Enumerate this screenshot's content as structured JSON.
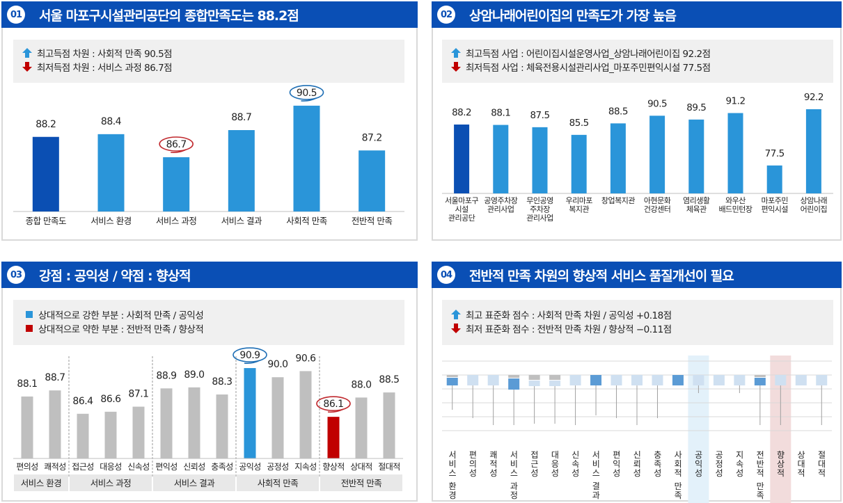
{
  "colors": {
    "header": "#0a4fb5",
    "bar_primary": "#0b4fb3",
    "bar_light": "#2a95d9",
    "bar_gray": "#bfbfbf",
    "bar_red": "#c00000",
    "up_arrow": "#2a95d9",
    "down_arrow": "#c00000",
    "circle_blue": "#1f6fb5",
    "circle_red": "#c0282d",
    "box_dark": "#5b9bd5",
    "box_light": "#cfe0f1",
    "box_gray": "#bfbfbf",
    "highlight_blue": "#e3f1fa",
    "highlight_red": "#f2dcdc"
  },
  "panels": [
    {
      "badge": "01",
      "title": "서울 마포구시설관리공단의 종합만족도는 88.2점",
      "summary": [
        {
          "icon": "up-arrow",
          "text": "최고득점 차원 : 사회적 만족 90.5점"
        },
        {
          "icon": "down-arrow",
          "text": "최저득점 차원 : 서비스 과정 86.7점"
        }
      ]
    },
    {
      "badge": "02",
      "title": "상암나래어린이집의 만족도가 가장 높음",
      "summary": [
        {
          "icon": "up-arrow",
          "text": "최고득점 사업 : 어린이집시설운영사업_상암나래어린이집 92.2점"
        },
        {
          "icon": "down-arrow",
          "text": "최저득점 사업 : 체육전용시설관리사업_마포주민편익시설 77.5점"
        }
      ]
    },
    {
      "badge": "03",
      "title": "강점 : 공익성 /  약점 : 향상적",
      "summary": [
        {
          "icon": "blue-square",
          "text": "상대적으로 강한 부분 :  사회적 만족 / 공익성"
        },
        {
          "icon": "red-square",
          "text": "상대적으로 약한 부분 :  전반적 만족 / 향상적"
        }
      ]
    },
    {
      "badge": "04",
      "title": "전반적 만족 차원의 향상적 서비스 품질개선이 필요",
      "summary": [
        {
          "icon": "up-arrow",
          "text": "최고 표준화 점수 : 사회적 만족 차원 / 공익성 +0.18점"
        },
        {
          "icon": "down-arrow",
          "text": "최저 표준화 점수 : 전반적 만족 차원 / 향상적 −0.11점"
        }
      ]
    }
  ],
  "chart_data": [
    {
      "type": "bar",
      "title": "서울 마포구시설관리공단의 종합만족도는 88.2점",
      "categories": [
        "종합 만족도",
        "서비스 환경",
        "서비스 과정",
        "서비스 결과",
        "사회적 만족",
        "전반적 만족"
      ],
      "values": [
        88.2,
        88.4,
        86.7,
        88.7,
        90.5,
        87.2
      ],
      "labels": [
        "88.2",
        "88.4",
        "86.7",
        "88.7",
        "90.5",
        "87.2"
      ],
      "bar_styles": [
        "primary",
        "light",
        "light",
        "light",
        "light",
        "light"
      ],
      "circled": {
        "2": "red",
        "4": "blue"
      },
      "ylim": [
        82.7,
        91.5
      ],
      "grid": false,
      "xlabel": "",
      "ylabel": ""
    },
    {
      "type": "bar",
      "title": "상암나래어린이집의 만족도가 가장 높음",
      "categories": [
        [
          "서울마포구",
          "시설",
          "관리공단"
        ],
        [
          "공영주차장",
          "관리사업"
        ],
        [
          "무인공영",
          "주차장",
          "관리사업"
        ],
        [
          "우리마포",
          "복지관"
        ],
        [
          "창업복지관"
        ],
        [
          "아현문화",
          "건강센터"
        ],
        [
          "염리생활",
          "체육관"
        ],
        [
          "와우산",
          "배드민턴장"
        ],
        [
          "마포주민",
          "편익시설"
        ],
        [
          "상암나래",
          "어린이집"
        ]
      ],
      "values": [
        88.2,
        88.1,
        87.5,
        85.5,
        88.5,
        90.5,
        89.5,
        91.2,
        77.5,
        92.2
      ],
      "labels": [
        "88.2",
        "88.1",
        "87.5",
        "85.5",
        "88.5",
        "90.5",
        "89.5",
        "91.2",
        "77.5",
        "92.2"
      ],
      "bar_styles": [
        "primary",
        "light",
        "light",
        "light",
        "light",
        "light",
        "light",
        "light",
        "light",
        "light"
      ],
      "ylim": [
        70.2,
        93
      ],
      "grid": false,
      "xlabel": "",
      "ylabel": ""
    },
    {
      "type": "bar",
      "title": "강점 : 공익성 /  약점 : 향상적",
      "groups": [
        {
          "name": "서비스 환경",
          "categories": [
            "편의성",
            "쾌적성"
          ],
          "values": [
            88.1,
            88.7
          ],
          "labels": [
            "88.1",
            "88.7"
          ],
          "styles": [
            "gray",
            "gray"
          ]
        },
        {
          "name": "서비스 과정",
          "categories": [
            "접근성",
            "대응성",
            "신속성"
          ],
          "values": [
            86.4,
            86.6,
            87.1
          ],
          "labels": [
            "86.4",
            "86.6",
            "87.1"
          ],
          "styles": [
            "gray",
            "gray",
            "gray"
          ]
        },
        {
          "name": "서비스 결과",
          "categories": [
            "편익성",
            "신뢰성",
            "충족성"
          ],
          "values": [
            88.9,
            89.0,
            88.3
          ],
          "labels": [
            "88.9",
            "89.0",
            "88.3"
          ],
          "styles": [
            "gray",
            "gray",
            "gray"
          ]
        },
        {
          "name": "사회적 만족",
          "categories": [
            "공익성",
            "공정성",
            "지속성"
          ],
          "values": [
            90.9,
            90.0,
            90.6
          ],
          "labels": [
            "90.9",
            "90.0",
            "90.6"
          ],
          "styles": [
            "blue",
            "gray",
            "gray"
          ],
          "circled": {
            "0": "blue"
          }
        },
        {
          "name": "전반적 만족",
          "categories": [
            "향상적",
            "상대적",
            "절대적"
          ],
          "values": [
            86.1,
            88.0,
            88.5
          ],
          "labels": [
            "86.1",
            "88.0",
            "88.5"
          ],
          "styles": [
            "red",
            "gray",
            "gray"
          ],
          "circled": {
            "0": "red"
          }
        }
      ],
      "ylim": [
        82.0,
        91.5
      ],
      "grid": false,
      "xlabel": "",
      "ylabel": ""
    },
    {
      "type": "bar",
      "title": "전반적 만족 차원의 향상적 서비스 품질개선이 필요",
      "categories": [
        "서비스 환경",
        "편의성",
        "쾌적성",
        "서비스 과정",
        "접근성",
        "대응성",
        "신속성",
        "서비스 결과",
        "편익성",
        "신뢰성",
        "충족성",
        "사회적 만족",
        "공익성",
        "공정성",
        "지속성",
        "전반적 만족",
        "향상적",
        "상대적",
        "절대적"
      ],
      "box_styles": [
        "dark-split",
        "light",
        "light",
        "dark-split-down",
        "light-split",
        "light-split",
        "light",
        "dark",
        "light",
        "light",
        "light",
        "dark",
        "light",
        "light",
        "light",
        "dark-split",
        "light",
        "light",
        "light"
      ],
      "whisker_ends": [
        3.5,
        4.1,
        4.6,
        4.6,
        4.5,
        4.5,
        4.6,
        3.9,
        4.1,
        4.6,
        4.1,
        1.5,
        2.3,
        1.5,
        2.3,
        4.6,
        4.6,
        1.5,
        4.6
      ],
      "highlight": {
        "12": "blue",
        "16": "red"
      },
      "gridlines": 6,
      "xlabel": "",
      "ylabel": ""
    }
  ]
}
